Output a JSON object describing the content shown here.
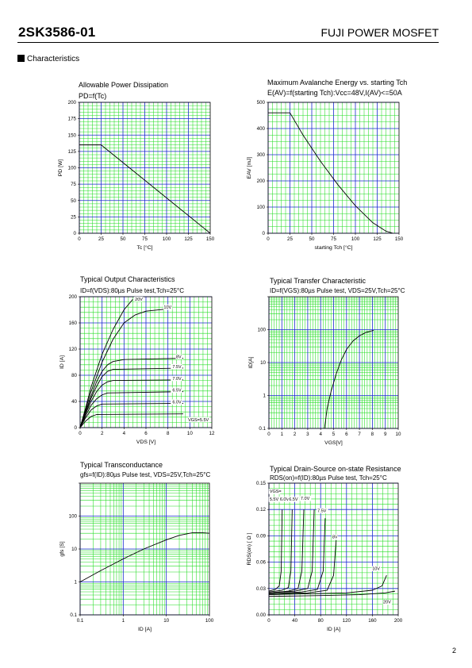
{
  "header": {
    "part_number": "2SK3586-01",
    "product_family": "FUJI POWER MOSFET",
    "section_title": "Characteristics",
    "page_number": "2"
  },
  "colors": {
    "grid_minor": "#22dd22",
    "grid_major": "#1a2bd0",
    "curve": "#000000"
  },
  "chart_data": [
    {
      "type": "line",
      "title": "Allowable Power Dissipation",
      "subtitle": "PD=f(Tc)",
      "xlabel": "Tc [°C]",
      "ylabel": "PD [W]",
      "xlim": [
        0,
        150
      ],
      "ylim": [
        0,
        200
      ],
      "xticks": [
        "0",
        "25",
        "50",
        "75",
        "100",
        "125",
        "150"
      ],
      "yticks": [
        "0",
        "25",
        "50",
        "75",
        "100",
        "125",
        "150",
        "175",
        "200"
      ],
      "series": [
        {
          "x": [
            0,
            25,
            150
          ],
          "y": [
            135,
            135,
            0
          ]
        }
      ]
    },
    {
      "type": "line",
      "title": "Maximum Avalanche Energy vs. starting Tch",
      "subtitle": "E(AV)=f(starting Tch):Vcc=48V,I(AV)<=50A",
      "xlabel": "starting Tch [°C]",
      "ylabel": "EAV [mJ]",
      "xlim": [
        0,
        150
      ],
      "ylim": [
        0,
        500
      ],
      "xticks": [
        "0",
        "25",
        "50",
        "75",
        "100",
        "125",
        "150"
      ],
      "yticks": [
        "0",
        "100",
        "200",
        "300",
        "400",
        "500"
      ],
      "series": [
        {
          "x": [
            0,
            25,
            40,
            60,
            80,
            100,
            120,
            135,
            143
          ],
          "y": [
            460,
            460,
            375,
            275,
            185,
            105,
            40,
            8,
            0
          ]
        }
      ]
    },
    {
      "type": "line",
      "title": "Typical Output Characteristics",
      "subtitle": "ID=f(VDS):80µs Pulse test,Tch=25°C",
      "xlabel": "VDS [V]",
      "ylabel": "ID [A]",
      "xlim": [
        0,
        12
      ],
      "ylim": [
        0,
        200
      ],
      "xticks": [
        "0",
        "2",
        "4",
        "6",
        "8",
        "10",
        "12"
      ],
      "yticks": [
        "0",
        "40",
        "80",
        "120",
        "160",
        "200"
      ],
      "series": [
        {
          "name": "20V",
          "x": [
            0,
            0.5,
            1.0,
            2.0,
            3.0,
            4.0,
            4.8
          ],
          "y": [
            0,
            30,
            62,
            112,
            150,
            180,
            196
          ]
        },
        {
          "name": "10V",
          "x": [
            0,
            0.5,
            1.0,
            2.0,
            3.0,
            4.0,
            5.0,
            6.0,
            8.4
          ],
          "y": [
            0,
            28,
            55,
            100,
            135,
            160,
            172,
            178,
            182
          ]
        },
        {
          "name": "8V",
          "x": [
            0,
            0.5,
            1.0,
            1.5,
            2.0,
            2.5,
            3.0,
            4.0,
            9.4
          ],
          "y": [
            0,
            25,
            48,
            70,
            86,
            96,
            101,
            104,
            106
          ]
        },
        {
          "name": "7.5V",
          "x": [
            0,
            0.5,
            1.0,
            1.5,
            2.0,
            2.5,
            3.0,
            9.4
          ],
          "y": [
            0,
            23,
            45,
            63,
            78,
            86,
            89,
            91
          ]
        },
        {
          "name": "7.0V",
          "x": [
            0,
            0.5,
            1.0,
            1.5,
            2.0,
            2.5,
            3.0,
            9.4
          ],
          "y": [
            0,
            21,
            40,
            55,
            65,
            70,
            72,
            73
          ]
        },
        {
          "name": "6.5V",
          "x": [
            0,
            0.5,
            1.0,
            1.5,
            2.0,
            2.5,
            9.4
          ],
          "y": [
            0,
            18,
            34,
            44,
            50,
            53,
            55
          ]
        },
        {
          "name": "6.0V",
          "x": [
            0,
            0.5,
            1.0,
            1.5,
            2.0,
            9.4
          ],
          "y": [
            0,
            15,
            27,
            33,
            36,
            37
          ]
        },
        {
          "name": "VGS=5.5V",
          "x": [
            0,
            0.5,
            1.0,
            1.5,
            9.4
          ],
          "y": [
            0,
            10,
            17,
            20,
            21
          ]
        }
      ]
    },
    {
      "type": "line",
      "title": "Typical Transfer Characteristic",
      "subtitle": "ID=f(VGS):80µs Pulse test, VDS=25V,Tch=25°C",
      "xlabel": "VGS[V]",
      "ylabel": "ID[A]",
      "xlim": [
        0,
        10
      ],
      "ylim": [
        0.1,
        200
      ],
      "yscale": "log",
      "xticks": [
        "0",
        "1",
        "2",
        "3",
        "4",
        "5",
        "6",
        "7",
        "8",
        "9",
        "10"
      ],
      "yticks": [
        "0.1",
        "1",
        "10",
        "100"
      ],
      "series": [
        {
          "x": [
            4.3,
            4.5,
            4.8,
            5.2,
            5.6,
            6.0,
            6.5,
            7.0,
            7.5,
            8.1
          ],
          "y": [
            0.1,
            0.4,
            1.3,
            4.5,
            12,
            25,
            45,
            65,
            82,
            95
          ]
        }
      ]
    },
    {
      "type": "line",
      "title": "Typical Transconductance",
      "subtitle": "gfs=f(ID):80µs Pulse test, VDS=25V,Tch=25°C",
      "xlabel": "ID [A]",
      "ylabel": "gfs [S]",
      "xlim": [
        0.1,
        100
      ],
      "ylim": [
        0.1,
        100
      ],
      "xscale": "log",
      "yscale": "log",
      "xticks": [
        "0.1",
        "1",
        "10",
        "100"
      ],
      "yticks": [
        "0.1",
        "1",
        "10",
        "100"
      ],
      "series": [
        {
          "x": [
            0.1,
            0.3,
            1,
            3,
            10,
            20,
            40,
            70,
            100
          ],
          "y": [
            1,
            2.2,
            5,
            10,
            19,
            26,
            31,
            31,
            30
          ]
        }
      ]
    },
    {
      "type": "line",
      "title": "Typical Drain-Source on-state Resistance",
      "subtitle": "RDS(on)=f(ID):80µs Pulse test, Tch=25°C",
      "xlabel": "ID [A]",
      "ylabel": "RDS(on) [ Ω ]",
      "xlim": [
        0,
        200
      ],
      "ylim": [
        0,
        0.15
      ],
      "xticks": [
        "0",
        "40",
        "80",
        "120",
        "160",
        "200"
      ],
      "yticks": [
        "0.00",
        "0.03",
        "0.06",
        "0.09",
        "0.12",
        "0.15"
      ],
      "series": [
        {
          "name": "VGS=5.5V",
          "x": [
            0,
            10,
            16,
            19,
            20.5
          ],
          "y": [
            0.027,
            0.029,
            0.033,
            0.05,
            0.12
          ]
        },
        {
          "name": "6.0V",
          "x": [
            0,
            20,
            30,
            34,
            36
          ],
          "y": [
            0.026,
            0.028,
            0.031,
            0.05,
            0.12
          ]
        },
        {
          "name": "6.5V",
          "x": [
            0,
            30,
            45,
            51,
            54
          ],
          "y": [
            0.025,
            0.027,
            0.03,
            0.05,
            0.12
          ]
        },
        {
          "name": "7.0V",
          "x": [
            0,
            40,
            60,
            67,
            70
          ],
          "y": [
            0.025,
            0.027,
            0.03,
            0.05,
            0.12
          ]
        },
        {
          "name": "7.5V",
          "x": [
            0,
            50,
            75,
            84,
            87
          ],
          "y": [
            0.024,
            0.026,
            0.029,
            0.05,
            0.11
          ]
        },
        {
          "name": "8V",
          "x": [
            0,
            60,
            90,
            100,
            104
          ],
          "y": [
            0.024,
            0.025,
            0.028,
            0.045,
            0.085
          ]
        },
        {
          "name": "10V",
          "x": [
            0,
            60,
            120,
            160,
            175,
            182
          ],
          "y": [
            0.023,
            0.024,
            0.025,
            0.028,
            0.033,
            0.045
          ]
        },
        {
          "name": "20V",
          "x": [
            0,
            80,
            140,
            180,
            195
          ],
          "y": [
            0.021,
            0.022,
            0.023,
            0.025,
            0.027
          ]
        }
      ]
    }
  ]
}
